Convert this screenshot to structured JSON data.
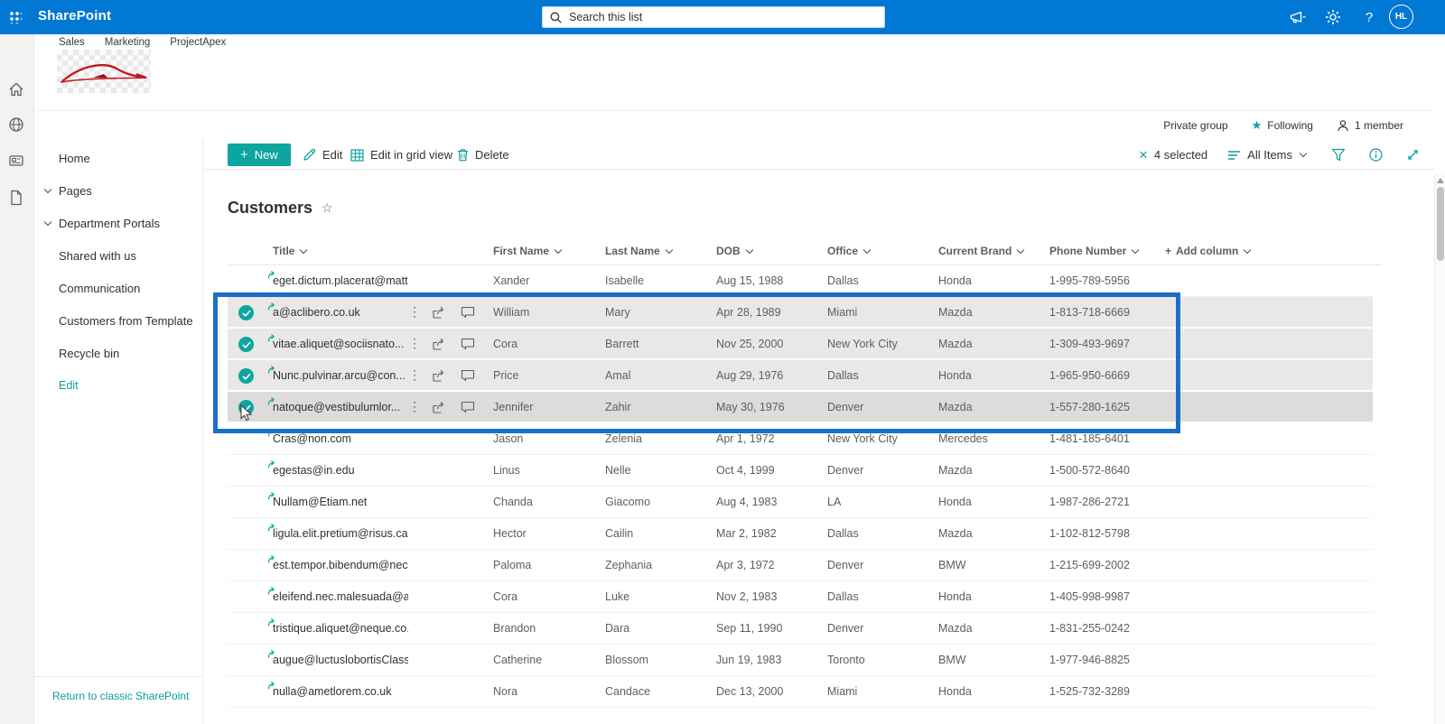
{
  "colors": {
    "topbar_blue": "#0078d4",
    "accent_teal": "#0da5a0",
    "selection_blue": "#1b6fc8"
  },
  "topbar": {
    "app_name": "SharePoint",
    "search_placeholder": "Search this list",
    "avatar_initials": "HL"
  },
  "site_tabs": [
    "Sales",
    "Marketing",
    "ProjectApex"
  ],
  "meta": {
    "privacy": "Private group",
    "following": "Following",
    "members": "1 member"
  },
  "sidebar": {
    "items": [
      {
        "label": "Home",
        "chevron": false,
        "accent": false
      },
      {
        "label": "Pages",
        "chevron": true,
        "accent": false
      },
      {
        "label": "Department Portals",
        "chevron": true,
        "accent": false
      },
      {
        "label": "Shared with us",
        "chevron": false,
        "accent": false
      },
      {
        "label": "Communication",
        "chevron": false,
        "accent": false
      },
      {
        "label": "Customers from Template",
        "chevron": false,
        "accent": false
      },
      {
        "label": "Recycle bin",
        "chevron": false,
        "accent": false
      },
      {
        "label": "Edit",
        "chevron": false,
        "accent": true
      }
    ],
    "footer_link": "Return to classic SharePoint"
  },
  "command_bar": {
    "new_label": "New",
    "edit_label": "Edit",
    "grid_view_label": "Edit in grid view",
    "delete_label": "Delete",
    "selected_count_label": "4 selected",
    "view_label": "All Items"
  },
  "glyphs": {
    "plus": "+",
    "close": "×",
    "ellipsis": "⋮",
    "star_outline": "☆",
    "star_filled": "★",
    "help": "?"
  },
  "list": {
    "title": "Customers",
    "columns": [
      "Title",
      "First Name",
      "Last Name",
      "DOB",
      "Office",
      "Current Brand",
      "Phone Number"
    ],
    "add_column_label": "Add column",
    "rows": [
      {
        "title": "eget.dictum.placerat@mattis.ca",
        "first_name": "Xander",
        "last_name": "Isabelle",
        "dob": "Aug 15, 1988",
        "office": "Dallas",
        "brand": "Honda",
        "phone": "1-995-789-5956",
        "selected": false,
        "active": false
      },
      {
        "title": "a@aclibero.co.uk",
        "first_name": "William",
        "last_name": "Mary",
        "dob": "Apr 28, 1989",
        "office": "Miami",
        "brand": "Mazda",
        "phone": "1-813-718-6669",
        "selected": true,
        "active": false
      },
      {
        "title": "vitae.aliquet@sociisnato...",
        "first_name": "Cora",
        "last_name": "Barrett",
        "dob": "Nov 25, 2000",
        "office": "New York City",
        "brand": "Mazda",
        "phone": "1-309-493-9697",
        "selected": true,
        "active": false
      },
      {
        "title": "Nunc.pulvinar.arcu@con...",
        "first_name": "Price",
        "last_name": "Amal",
        "dob": "Aug 29, 1976",
        "office": "Dallas",
        "brand": "Honda",
        "phone": "1-965-950-6669",
        "selected": true,
        "active": false
      },
      {
        "title": "natoque@vestibulumlor...",
        "first_name": "Jennifer",
        "last_name": "Zahir",
        "dob": "May 30, 1976",
        "office": "Denver",
        "brand": "Mazda",
        "phone": "1-557-280-1625",
        "selected": true,
        "active": true
      },
      {
        "title": "Cras@non.com",
        "first_name": "Jason",
        "last_name": "Zelenia",
        "dob": "Apr 1, 1972",
        "office": "New York City",
        "brand": "Mercedes",
        "phone": "1-481-185-6401",
        "selected": false,
        "active": false
      },
      {
        "title": "egestas@in.edu",
        "first_name": "Linus",
        "last_name": "Nelle",
        "dob": "Oct 4, 1999",
        "office": "Denver",
        "brand": "Mazda",
        "phone": "1-500-572-8640",
        "selected": false,
        "active": false
      },
      {
        "title": "Nullam@Etiam.net",
        "first_name": "Chanda",
        "last_name": "Giacomo",
        "dob": "Aug 4, 1983",
        "office": "LA",
        "brand": "Honda",
        "phone": "1-987-286-2721",
        "selected": false,
        "active": false
      },
      {
        "title": "ligula.elit.pretium@risus.ca",
        "first_name": "Hector",
        "last_name": "Cailin",
        "dob": "Mar 2, 1982",
        "office": "Dallas",
        "brand": "Mazda",
        "phone": "1-102-812-5798",
        "selected": false,
        "active": false
      },
      {
        "title": "est.tempor.bibendum@neccursusa.com",
        "first_name": "Paloma",
        "last_name": "Zephania",
        "dob": "Apr 3, 1972",
        "office": "Denver",
        "brand": "BMW",
        "phone": "1-215-699-2002",
        "selected": false,
        "active": false
      },
      {
        "title": "eleifend.nec.malesuada@atrisus.ca",
        "first_name": "Cora",
        "last_name": "Luke",
        "dob": "Nov 2, 1983",
        "office": "Dallas",
        "brand": "Honda",
        "phone": "1-405-998-9987",
        "selected": false,
        "active": false
      },
      {
        "title": "tristique.aliquet@neque.co.uk",
        "first_name": "Brandon",
        "last_name": "Dara",
        "dob": "Sep 11, 1990",
        "office": "Denver",
        "brand": "Mazda",
        "phone": "1-831-255-0242",
        "selected": false,
        "active": false
      },
      {
        "title": "augue@luctuslobortisClass.co.uk",
        "first_name": "Catherine",
        "last_name": "Blossom",
        "dob": "Jun 19, 1983",
        "office": "Toronto",
        "brand": "BMW",
        "phone": "1-977-946-8825",
        "selected": false,
        "active": false
      },
      {
        "title": "nulla@ametlorem.co.uk",
        "first_name": "Nora",
        "last_name": "Candace",
        "dob": "Dec 13, 2000",
        "office": "Miami",
        "brand": "Honda",
        "phone": "1-525-732-3289",
        "selected": false,
        "active": false
      }
    ]
  }
}
